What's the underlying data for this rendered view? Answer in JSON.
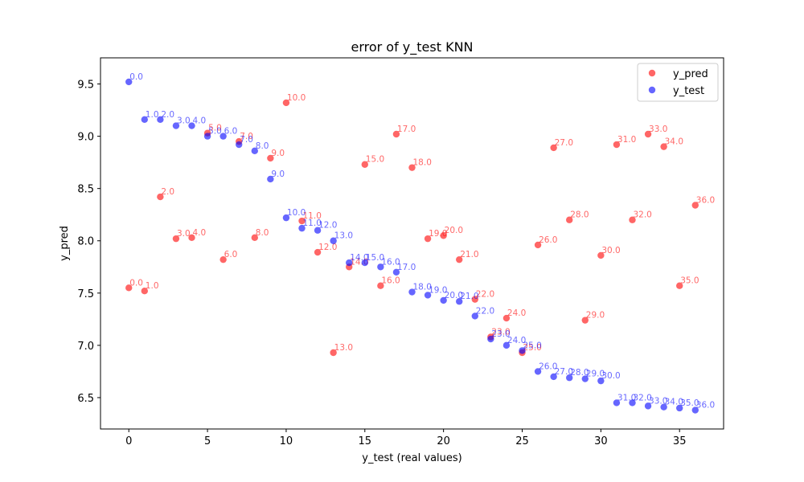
{
  "chart_data": {
    "type": "scatter",
    "title": "error of y_test KNN",
    "xlabel": "y_test (real values)",
    "ylabel": "y_pred",
    "xlim": [
      -1.8,
      37.8
    ],
    "ylim": [
      6.2,
      9.75
    ],
    "xticks": [
      0,
      5,
      10,
      15,
      20,
      25,
      30,
      35
    ],
    "yticks": [
      6.5,
      7.0,
      7.5,
      8.0,
      8.5,
      9.0,
      9.5
    ],
    "xtick_labels": [
      "0",
      "5",
      "10",
      "15",
      "20",
      "25",
      "30",
      "35"
    ],
    "ytick_labels": [
      "6.5",
      "7.0",
      "7.5",
      "8.0",
      "8.5",
      "9.0",
      "9.5"
    ],
    "grid": false,
    "legend_position": "top-right",
    "series": [
      {
        "name": "y_pred",
        "color": "#ff0000",
        "x": [
          0,
          1,
          2,
          3,
          4,
          5,
          6,
          7,
          8,
          9,
          10,
          11,
          12,
          13,
          14,
          15,
          16,
          17,
          18,
          19,
          20,
          21,
          22,
          23,
          24,
          25,
          26,
          27,
          28,
          29,
          30,
          31,
          32,
          33,
          34,
          35,
          36
        ],
        "y": [
          7.55,
          7.52,
          8.42,
          8.02,
          8.03,
          9.03,
          7.82,
          8.95,
          8.03,
          8.79,
          9.32,
          8.19,
          7.89,
          6.93,
          7.75,
          8.73,
          7.57,
          9.02,
          8.7,
          8.02,
          8.05,
          7.82,
          7.44,
          7.08,
          7.26,
          6.93,
          7.96,
          8.89,
          8.2,
          7.24,
          7.86,
          8.92,
          8.2,
          9.02,
          8.9,
          7.57,
          8.34
        ],
        "labels": [
          "0.0",
          "1.0",
          "2.0",
          "3.0",
          "4.0",
          "5.0",
          "6.0",
          "7.0",
          "8.0",
          "9.0",
          "10.0",
          "11.0",
          "12.0",
          "13.0",
          "14.0",
          "15.0",
          "16.0",
          "17.0",
          "18.0",
          "19.0",
          "20.0",
          "21.0",
          "22.0",
          "23.0",
          "24.0",
          "25.0",
          "26.0",
          "27.0",
          "28.0",
          "29.0",
          "30.0",
          "31.0",
          "32.0",
          "33.0",
          "34.0",
          "35.0",
          "36.0"
        ]
      },
      {
        "name": "y_test",
        "color": "#0000ff",
        "x": [
          0,
          1,
          2,
          3,
          4,
          5,
          6,
          7,
          8,
          9,
          10,
          11,
          12,
          13,
          14,
          15,
          16,
          17,
          18,
          19,
          20,
          21,
          22,
          23,
          24,
          25,
          26,
          27,
          28,
          29,
          30,
          31,
          32,
          33,
          34,
          35,
          36
        ],
        "y": [
          9.52,
          9.16,
          9.16,
          9.1,
          9.1,
          9.0,
          9.0,
          8.92,
          8.86,
          8.59,
          8.22,
          8.12,
          8.1,
          8.0,
          7.79,
          7.79,
          7.75,
          7.7,
          7.51,
          7.48,
          7.43,
          7.42,
          7.28,
          7.06,
          7.0,
          6.95,
          6.75,
          6.7,
          6.69,
          6.68,
          6.66,
          6.45,
          6.45,
          6.42,
          6.41,
          6.4,
          6.38
        ],
        "labels": [
          "0.0",
          "1.0",
          "2.0",
          "3.0",
          "4.0",
          "5.0",
          "6.0",
          "7.0",
          "8.0",
          "9.0",
          "10.0",
          "11.0",
          "12.0",
          "13.0",
          "14.0",
          "15.0",
          "16.0",
          "17.0",
          "18.0",
          "19.0",
          "20.0",
          "21.0",
          "22.0",
          "23.0",
          "24.0",
          "25.0",
          "26.0",
          "27.0",
          "28.0",
          "29.0",
          "30.0",
          "31.0",
          "32.0",
          "33.0",
          "34.0",
          "35.0",
          "36.0"
        ]
      }
    ]
  }
}
